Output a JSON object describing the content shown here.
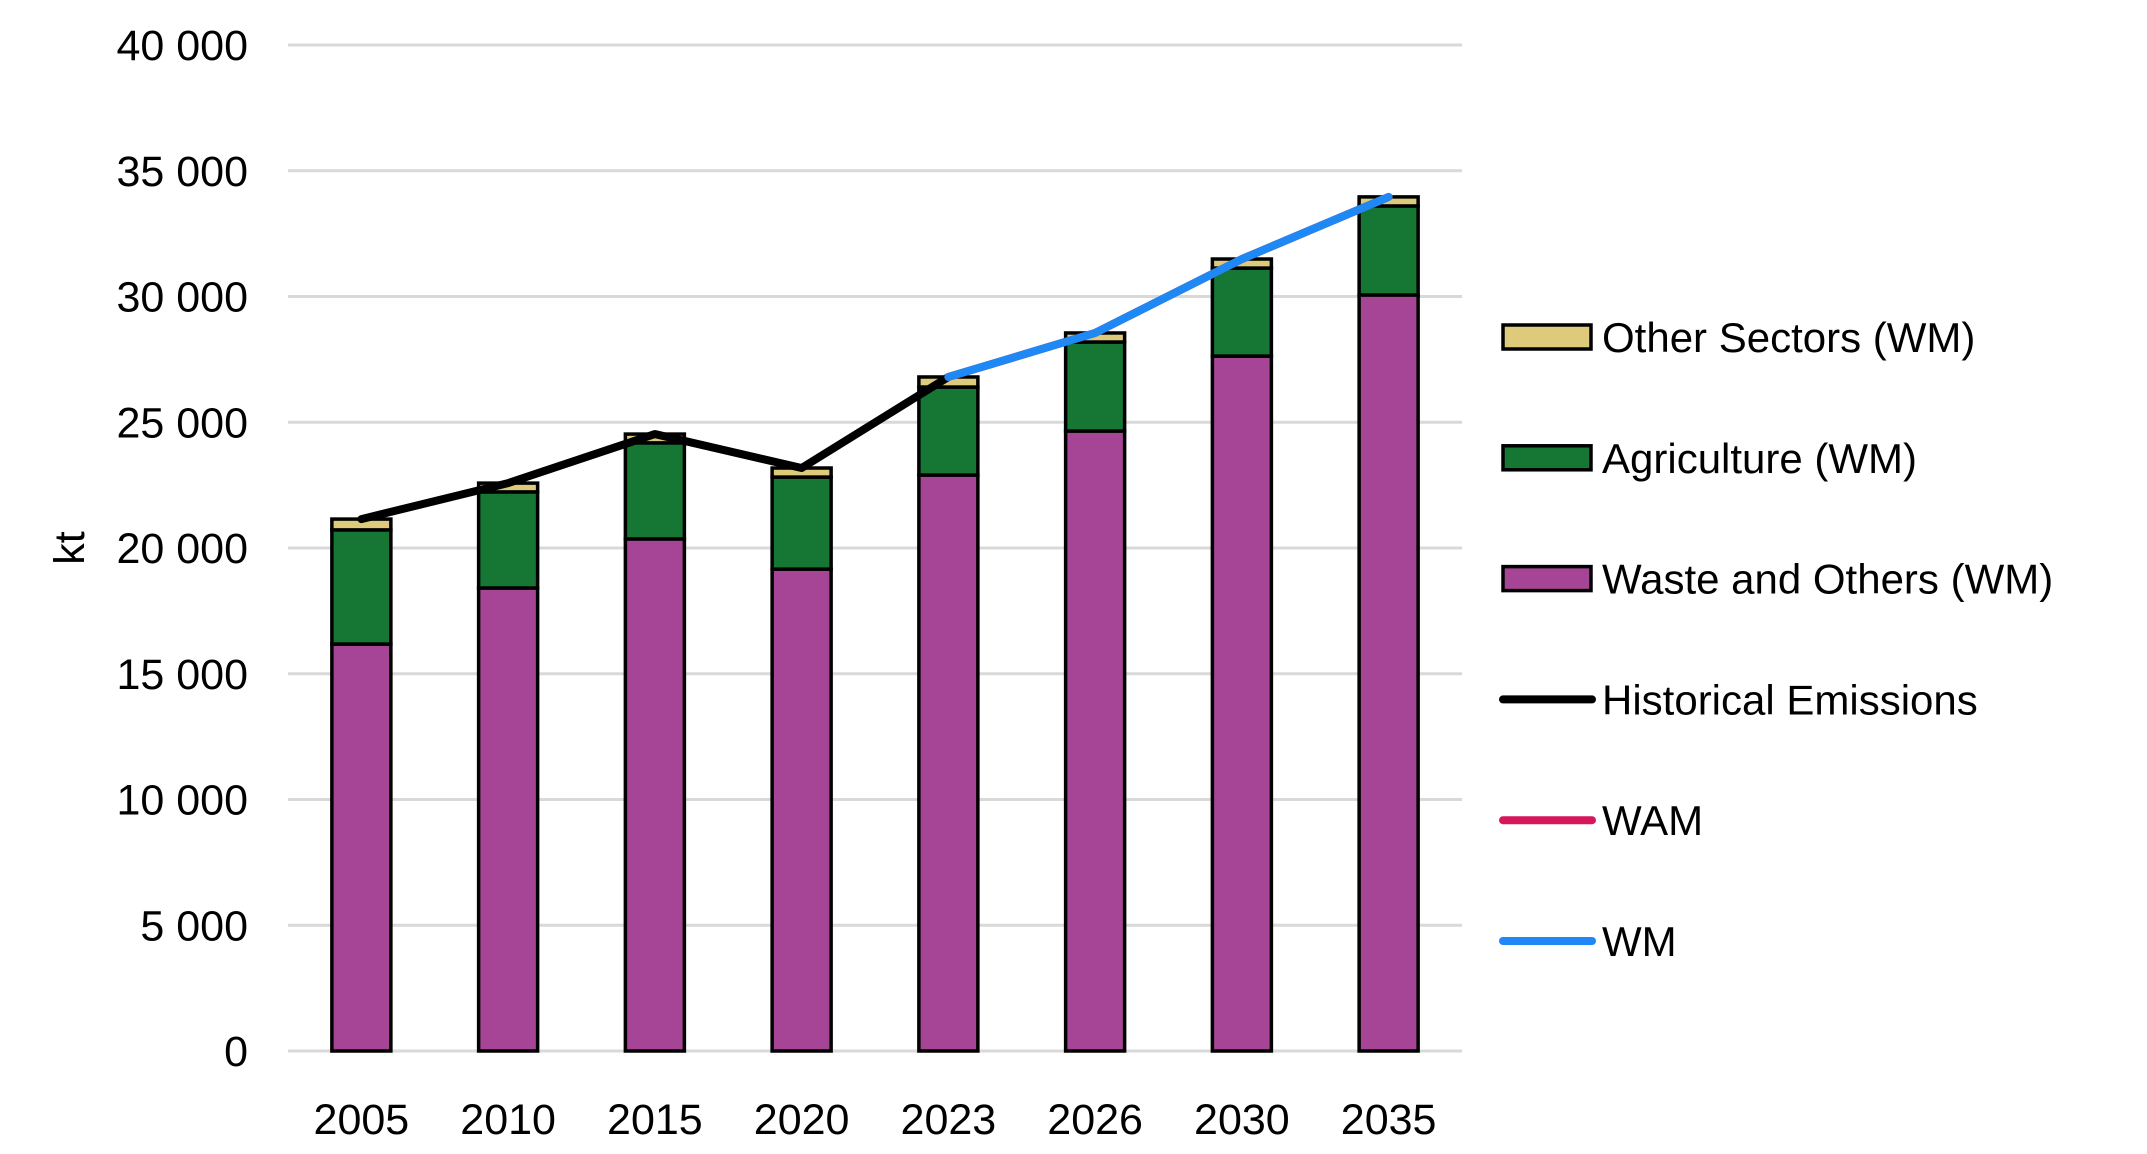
{
  "chart_data": {
    "type": "bar",
    "stacked": true,
    "title": "",
    "xlabel": "",
    "ylabel": "kt",
    "ylim": [
      0,
      40000
    ],
    "yticks": [
      0,
      5000,
      10000,
      15000,
      20000,
      25000,
      30000,
      35000,
      40000
    ],
    "ytick_labels": [
      "0",
      "5 000",
      "10 000",
      "15 000",
      "20 000",
      "25 000",
      "30 000",
      "35 000",
      "40 000"
    ],
    "grid": true,
    "legend_position": "right",
    "categories": [
      "2005",
      "2010",
      "2015",
      "2020",
      "2023",
      "2026",
      "2030",
      "2035"
    ],
    "series": [
      {
        "name": "Waste and Others (WM)",
        "kind": "bar",
        "color": "#A64495",
        "values": [
          16180,
          18410,
          20360,
          19160,
          22900,
          24650,
          27630,
          30060
        ]
      },
      {
        "name": "Agriculture (WM)",
        "kind": "bar",
        "color": "#167634",
        "values": [
          4540,
          3820,
          3820,
          3660,
          3500,
          3540,
          3500,
          3540
        ]
      },
      {
        "name": "Other Sectors (WM)",
        "kind": "bar",
        "color": "#DDCB7B",
        "values": [
          430,
          350,
          350,
          360,
          400,
          360,
          360,
          360
        ]
      },
      {
        "name": "Historical Emissions",
        "kind": "line",
        "color": "#000000",
        "values": [
          21150,
          22580,
          24530,
          23180,
          26800,
          null,
          null,
          null
        ]
      },
      {
        "name": "WAM",
        "kind": "line",
        "color": "#D6155A",
        "values": [
          null,
          null,
          null,
          null,
          26800,
          28550,
          31490,
          33960
        ]
      },
      {
        "name": "WM",
        "kind": "line",
        "color": "#1E88F5",
        "values": [
          null,
          null,
          null,
          null,
          26800,
          28550,
          31490,
          33960
        ]
      }
    ],
    "legend": [
      {
        "label": "Other Sectors (WM)",
        "kind": "box",
        "color": "#DDCB7B"
      },
      {
        "label": "Agriculture (WM)",
        "kind": "box",
        "color": "#167634"
      },
      {
        "label": "Waste and Others (WM)",
        "kind": "box",
        "color": "#A64495"
      },
      {
        "label": "Historical Emissions",
        "kind": "line",
        "color": "#000000"
      },
      {
        "label": "WAM",
        "kind": "line",
        "color": "#D6155A"
      },
      {
        "label": "WM",
        "kind": "line",
        "color": "#1E88F5"
      }
    ]
  }
}
